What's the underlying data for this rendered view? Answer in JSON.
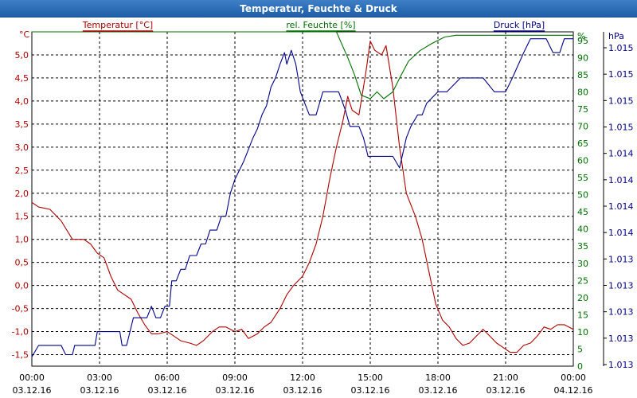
{
  "window": {
    "title": "Temperatur, Feuchte & Druck"
  },
  "chart_data": {
    "type": "line",
    "title": "Temperatur, Feuchte & Druck",
    "grid": true,
    "colors": {
      "temperature": "#b00000",
      "humidity": "#007000",
      "pressure": "#00008b"
    },
    "x_ticks": [
      {
        "time": "00:00",
        "date": "03.12.16"
      },
      {
        "time": "03:00",
        "date": "03.12.16"
      },
      {
        "time": "06:00",
        "date": "03.12.16"
      },
      {
        "time": "09:00",
        "date": "03.12.16"
      },
      {
        "time": "12:00",
        "date": "03.12.16"
      },
      {
        "time": "15:00",
        "date": "03.12.16"
      },
      {
        "time": "18:00",
        "date": "03.12.16"
      },
      {
        "time": "21:00",
        "date": "03.12.16"
      },
      {
        "time": "00:00",
        "date": "04.12.16"
      }
    ],
    "x_unit": "hours",
    "xlim": [
      0,
      24
    ],
    "axes": {
      "temperature": {
        "unit_label": "°C",
        "ylim": [
          -1.75,
          5.5
        ],
        "ticks": [
          "-1,5",
          "-1,0",
          "-0,5",
          "0,0",
          "0,5",
          "1,0",
          "1,5",
          "2,0",
          "2,5",
          "3,0",
          "3,5",
          "4,0",
          "4,5",
          "5,0"
        ],
        "tick_values": [
          -1.5,
          -1,
          -0.5,
          0,
          0.5,
          1,
          1.5,
          2,
          2.5,
          3,
          3.5,
          4,
          4.5,
          5
        ]
      },
      "humidity": {
        "unit_label": "%",
        "ylim": [
          0,
          97.5
        ],
        "ticks": [
          "0",
          "5",
          "10",
          "15",
          "20",
          "25",
          "30",
          "35",
          "40",
          "45",
          "50",
          "55",
          "60",
          "65",
          "70",
          "75",
          "80",
          "85",
          "90",
          "95"
        ],
        "tick_values": [
          0,
          5,
          10,
          15,
          20,
          25,
          30,
          35,
          40,
          45,
          50,
          55,
          60,
          65,
          70,
          75,
          80,
          85,
          90,
          95
        ]
      },
      "pressure": {
        "unit_label": "hPa",
        "ticks": [
          "1.013",
          "1.013",
          "1.013",
          "1.013",
          "1.013",
          "1.014",
          "1.014",
          "1.014",
          "1.014",
          "1.015",
          "1.015",
          "1.015",
          "1.015"
        ]
      }
    },
    "series": [
      {
        "name": "Temperatur [°C]",
        "axis": "temperature",
        "points": [
          [
            0,
            1.8
          ],
          [
            0.3,
            1.7
          ],
          [
            0.8,
            1.65
          ],
          [
            1.3,
            1.4
          ],
          [
            1.8,
            1.0
          ],
          [
            2.3,
            1.0
          ],
          [
            2.6,
            0.9
          ],
          [
            2.9,
            0.7
          ],
          [
            3.2,
            0.6
          ],
          [
            3.5,
            0.2
          ],
          [
            3.8,
            -0.1
          ],
          [
            4.1,
            -0.2
          ],
          [
            4.4,
            -0.3
          ],
          [
            4.7,
            -0.6
          ],
          [
            5.0,
            -0.85
          ],
          [
            5.3,
            -1.05
          ],
          [
            5.6,
            -1.05
          ],
          [
            6.0,
            -1.0
          ],
          [
            6.3,
            -1.1
          ],
          [
            6.6,
            -1.2
          ],
          [
            7.0,
            -1.25
          ],
          [
            7.3,
            -1.3
          ],
          [
            7.6,
            -1.2
          ],
          [
            8.0,
            -1.0
          ],
          [
            8.3,
            -0.9
          ],
          [
            8.6,
            -0.9
          ],
          [
            9.0,
            -1.0
          ],
          [
            9.3,
            -0.95
          ],
          [
            9.6,
            -1.15
          ],
          [
            10.0,
            -1.05
          ],
          [
            10.3,
            -0.9
          ],
          [
            10.6,
            -0.8
          ],
          [
            11.0,
            -0.5
          ],
          [
            11.3,
            -0.2
          ],
          [
            11.6,
            0.0
          ],
          [
            12.0,
            0.2
          ],
          [
            12.3,
            0.5
          ],
          [
            12.6,
            0.9
          ],
          [
            12.9,
            1.5
          ],
          [
            13.2,
            2.3
          ],
          [
            13.5,
            3.0
          ],
          [
            13.8,
            3.6
          ],
          [
            14.0,
            4.1
          ],
          [
            14.2,
            3.8
          ],
          [
            14.5,
            3.7
          ],
          [
            14.8,
            4.6
          ],
          [
            15.0,
            5.3
          ],
          [
            15.2,
            5.1
          ],
          [
            15.5,
            5.0
          ],
          [
            15.7,
            5.2
          ],
          [
            16.0,
            4.3
          ],
          [
            16.3,
            3.0
          ],
          [
            16.6,
            2.0
          ],
          [
            17.0,
            1.5
          ],
          [
            17.3,
            1.0
          ],
          [
            17.6,
            0.3
          ],
          [
            17.9,
            -0.4
          ],
          [
            18.2,
            -0.75
          ],
          [
            18.5,
            -0.9
          ],
          [
            18.8,
            -1.15
          ],
          [
            19.1,
            -1.3
          ],
          [
            19.4,
            -1.25
          ],
          [
            19.7,
            -1.1
          ],
          [
            20.0,
            -0.95
          ],
          [
            20.3,
            -1.1
          ],
          [
            20.6,
            -1.25
          ],
          [
            20.9,
            -1.35
          ],
          [
            21.2,
            -1.45
          ],
          [
            21.5,
            -1.45
          ],
          [
            21.8,
            -1.3
          ],
          [
            22.1,
            -1.25
          ],
          [
            22.4,
            -1.1
          ],
          [
            22.7,
            -0.9
          ],
          [
            23.0,
            -0.95
          ],
          [
            23.3,
            -0.85
          ],
          [
            23.6,
            -0.85
          ],
          [
            24.0,
            -0.95
          ]
        ]
      },
      {
        "name": "rel. Feuchte [%]",
        "axis": "humidity",
        "points": [
          [
            0,
            100
          ],
          [
            13.0,
            100
          ],
          [
            13.5,
            98
          ],
          [
            14.0,
            90
          ],
          [
            14.3,
            85
          ],
          [
            14.6,
            79
          ],
          [
            15.0,
            78
          ],
          [
            15.3,
            80
          ],
          [
            15.6,
            78
          ],
          [
            16.0,
            80
          ],
          [
            16.3,
            84
          ],
          [
            16.7,
            89
          ],
          [
            17.2,
            92
          ],
          [
            17.7,
            94
          ],
          [
            18.0,
            95
          ],
          [
            18.3,
            96
          ],
          [
            18.8,
            96.5
          ],
          [
            20.0,
            96.5
          ],
          [
            24.0,
            96.5
          ]
        ]
      },
      {
        "name": "Druck [hPa]",
        "axis": "pressure",
        "points": [
          [
            0,
            -1.55
          ],
          [
            0.3,
            -1.3
          ],
          [
            1.3,
            -1.3
          ],
          [
            1.5,
            -1.5
          ],
          [
            1.8,
            -1.5
          ],
          [
            1.9,
            -1.3
          ],
          [
            2.8,
            -1.3
          ],
          [
            2.9,
            -1.0
          ],
          [
            3.9,
            -1.0
          ],
          [
            4.0,
            -1.3
          ],
          [
            4.2,
            -1.3
          ],
          [
            4.5,
            -0.7
          ],
          [
            5.1,
            -0.7
          ],
          [
            5.3,
            -0.45
          ],
          [
            5.5,
            -0.7
          ],
          [
            5.7,
            -0.7
          ],
          [
            5.9,
            -0.45
          ],
          [
            6.1,
            -0.45
          ],
          [
            6.2,
            0.1
          ],
          [
            6.4,
            0.1
          ],
          [
            6.6,
            0.35
          ],
          [
            6.8,
            0.35
          ],
          [
            7.0,
            0.65
          ],
          [
            7.3,
            0.65
          ],
          [
            7.5,
            0.9
          ],
          [
            7.7,
            0.9
          ],
          [
            7.9,
            1.2
          ],
          [
            8.2,
            1.2
          ],
          [
            8.4,
            1.5
          ],
          [
            8.6,
            1.5
          ],
          [
            8.8,
            2.0
          ],
          [
            9.0,
            2.3
          ],
          [
            9.2,
            2.5
          ],
          [
            9.4,
            2.7
          ],
          [
            9.6,
            2.95
          ],
          [
            9.8,
            3.2
          ],
          [
            10.0,
            3.4
          ],
          [
            10.2,
            3.7
          ],
          [
            10.4,
            3.9
          ],
          [
            10.6,
            4.3
          ],
          [
            10.8,
            4.5
          ],
          [
            11.0,
            4.8
          ],
          [
            11.2,
            5.05
          ],
          [
            11.3,
            4.8
          ],
          [
            11.5,
            5.1
          ],
          [
            11.7,
            4.8
          ],
          [
            11.9,
            4.2
          ],
          [
            12.1,
            3.95
          ],
          [
            12.3,
            3.7
          ],
          [
            12.6,
            3.7
          ],
          [
            12.9,
            4.2
          ],
          [
            13.6,
            4.2
          ],
          [
            13.9,
            3.8
          ],
          [
            14.1,
            3.45
          ],
          [
            14.5,
            3.45
          ],
          [
            14.7,
            3.2
          ],
          [
            14.9,
            2.8
          ],
          [
            16.0,
            2.8
          ],
          [
            16.3,
            2.55
          ],
          [
            16.6,
            3.2
          ],
          [
            16.8,
            3.45
          ],
          [
            17.1,
            3.7
          ],
          [
            17.3,
            3.7
          ],
          [
            17.5,
            3.95
          ],
          [
            18.0,
            4.2
          ],
          [
            18.4,
            4.2
          ],
          [
            19.0,
            4.5
          ],
          [
            20.0,
            4.5
          ],
          [
            20.5,
            4.2
          ],
          [
            21.0,
            4.2
          ],
          [
            21.3,
            4.5
          ],
          [
            21.8,
            5.05
          ],
          [
            22.1,
            5.35
          ],
          [
            22.8,
            5.35
          ],
          [
            23.1,
            5.05
          ],
          [
            23.4,
            5.05
          ],
          [
            23.6,
            5.35
          ],
          [
            24.0,
            5.35
          ]
        ]
      }
    ]
  }
}
